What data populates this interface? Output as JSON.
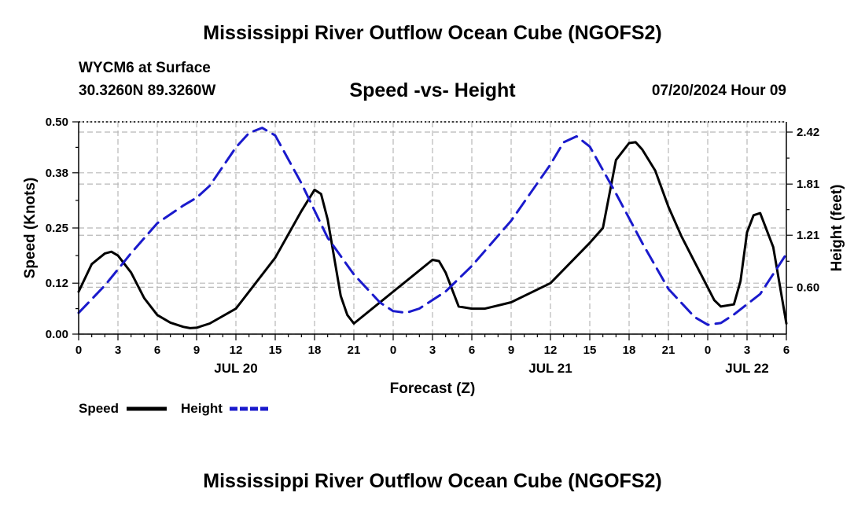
{
  "header": {
    "title": "Mississippi River Outflow Ocean Cube (NGOFS2)",
    "station": "WYCM6 at Surface",
    "coords": "30.3260N  89.3260W",
    "subtitle": "Speed -vs- Height",
    "datetime": "07/20/2024 Hour 09"
  },
  "footer": {
    "title": "Mississippi River Outflow Ocean Cube (NGOFS2)"
  },
  "colors": {
    "speed": "#000000",
    "height": "#1a1acc",
    "grid": "#b8b8b8"
  },
  "chart_data": {
    "type": "line",
    "title": "Speed -vs- Height",
    "xlabel": "Forecast (Z)",
    "ylabel": "Speed (Knots)",
    "y2label": "Height (feet)",
    "xlim": [
      0,
      54
    ],
    "ylim": [
      0,
      0.5
    ],
    "y2lim": [
      0.05,
      2.54
    ],
    "x_ticks": [
      0,
      3,
      6,
      9,
      12,
      15,
      18,
      21,
      24,
      27,
      30,
      33,
      36,
      39,
      42,
      45,
      48,
      51,
      54
    ],
    "x_tick_labels": [
      "0",
      "3",
      "6",
      "9",
      "12",
      "15",
      "18",
      "21",
      "0",
      "3",
      "6",
      "9",
      "12",
      "15",
      "18",
      "21",
      "0",
      "3",
      "6"
    ],
    "y_ticks": [
      0,
      0.12,
      0.25,
      0.38,
      0.5
    ],
    "y_tick_labels": [
      "0.00",
      "0.12",
      "0.25",
      "0.38",
      "0.50"
    ],
    "y2_ticks": [
      0.6,
      1.21,
      1.81,
      2.42
    ],
    "y2_tick_labels": [
      "0.60",
      "1.21",
      "1.81",
      "2.42"
    ],
    "date_labels": [
      {
        "x": 12,
        "label": "JUL 20"
      },
      {
        "x": 36,
        "label": "JUL 21"
      },
      {
        "x": 51,
        "label": "JUL 22"
      }
    ],
    "legend_placement": "bottom-left",
    "series": [
      {
        "name": "Speed",
        "axis": "left",
        "style": "solid",
        "x": [
          0,
          1,
          2,
          2.5,
          3,
          4,
          5,
          6,
          7,
          8,
          8.5,
          9,
          10,
          12,
          15,
          17,
          18,
          18.5,
          19,
          20,
          20.5,
          21,
          24,
          27,
          27.5,
          28,
          29,
          30,
          31,
          33,
          36,
          39,
          40,
          41,
          42,
          42.5,
          43,
          44,
          45,
          46,
          47,
          48,
          48.5,
          49,
          50,
          50.5,
          51,
          51.5,
          52,
          53,
          54
        ],
        "values": [
          0.1,
          0.165,
          0.19,
          0.194,
          0.185,
          0.145,
          0.085,
          0.045,
          0.027,
          0.017,
          0.014,
          0.015,
          0.025,
          0.06,
          0.18,
          0.29,
          0.34,
          0.33,
          0.27,
          0.09,
          0.045,
          0.025,
          0.1,
          0.175,
          0.172,
          0.145,
          0.065,
          0.06,
          0.06,
          0.075,
          0.12,
          0.215,
          0.25,
          0.41,
          0.45,
          0.452,
          0.435,
          0.385,
          0.3,
          0.23,
          0.17,
          0.11,
          0.08,
          0.065,
          0.07,
          0.125,
          0.24,
          0.28,
          0.285,
          0.205,
          0.025
        ]
      },
      {
        "name": "Height",
        "axis": "right",
        "style": "dashed",
        "x": [
          0,
          2,
          4,
          6,
          8,
          9,
          10,
          12,
          13,
          14,
          15,
          17,
          19,
          21,
          23,
          24,
          25,
          26,
          28,
          30,
          33,
          36,
          37,
          38,
          39,
          41,
          43,
          45,
          47,
          48,
          49,
          50,
          52,
          54
        ],
        "values": [
          0.3,
          0.62,
          1.0,
          1.35,
          1.56,
          1.65,
          1.79,
          2.24,
          2.41,
          2.47,
          2.38,
          1.82,
          1.18,
          0.75,
          0.42,
          0.32,
          0.3,
          0.35,
          0.55,
          0.85,
          1.38,
          2.04,
          2.3,
          2.37,
          2.25,
          1.7,
          1.12,
          0.58,
          0.25,
          0.16,
          0.18,
          0.28,
          0.52,
          0.99
        ]
      }
    ]
  },
  "legend": {
    "speed_label": "Speed",
    "height_label": "Height"
  }
}
